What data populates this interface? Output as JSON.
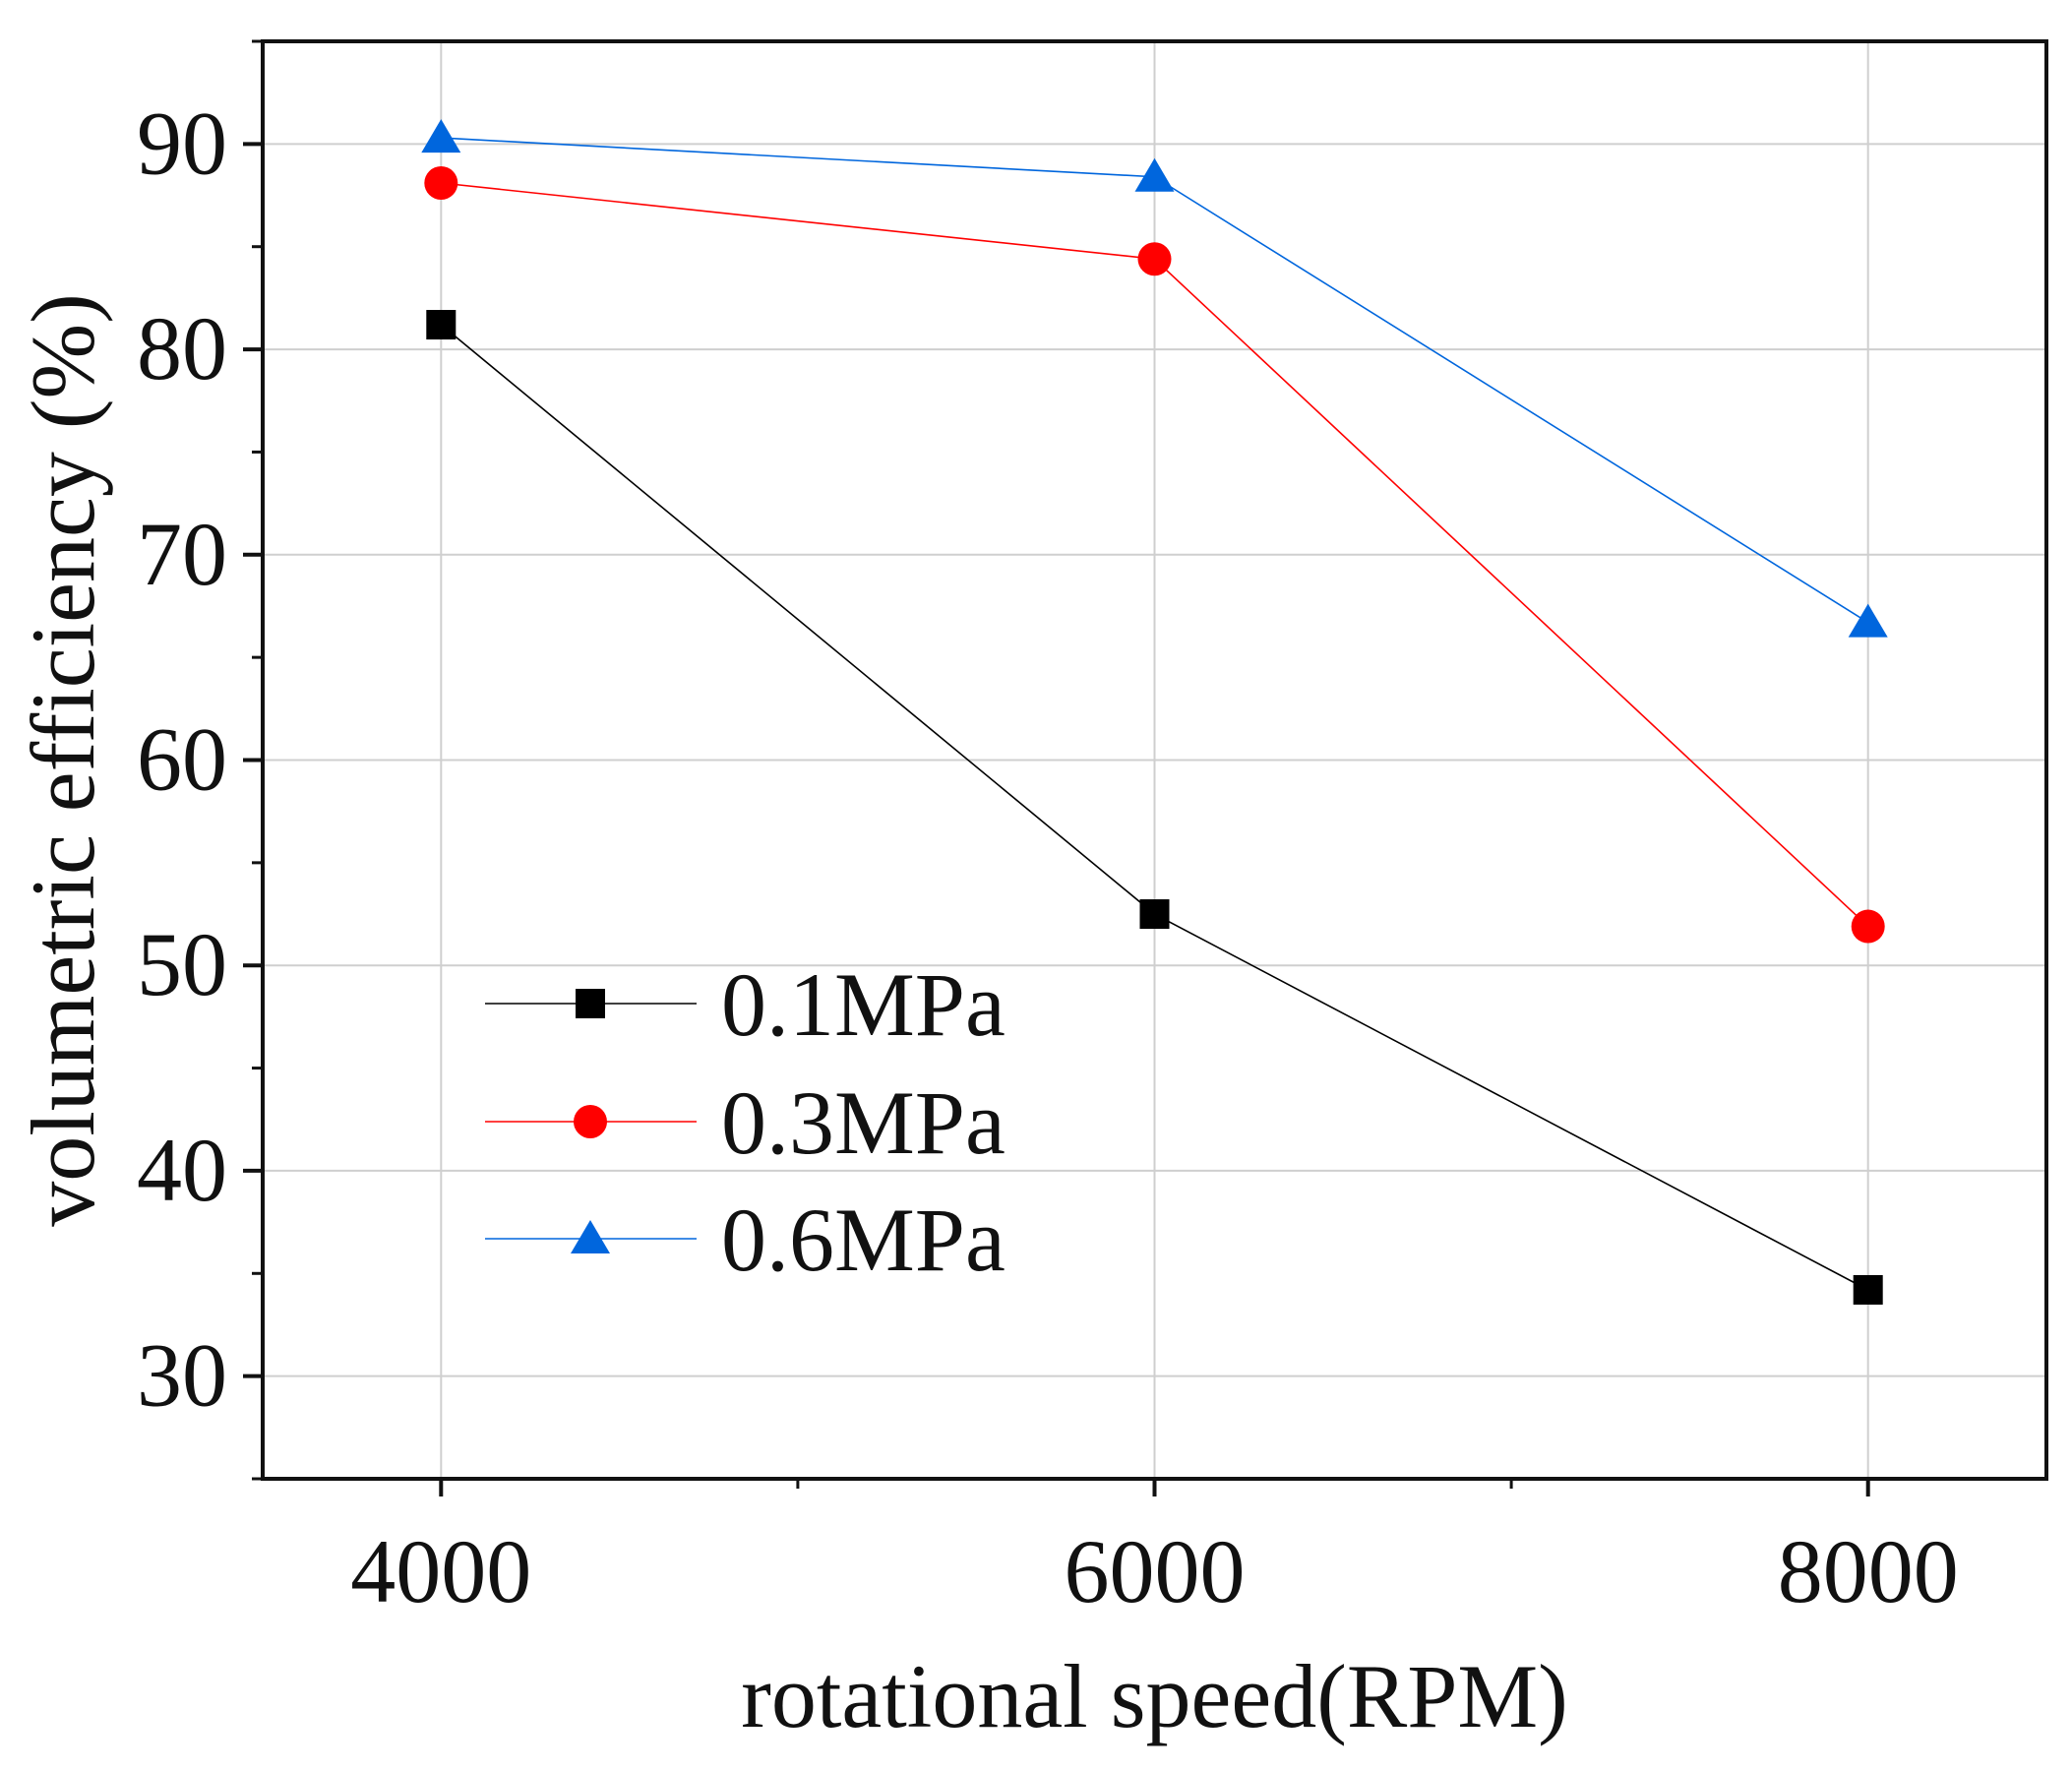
{
  "chart_data": {
    "type": "line",
    "title": "",
    "xlabel": "rotational speed(RPM)",
    "ylabel": "volumetric efficiency (%)",
    "x": [
      4000,
      6000,
      8000
    ],
    "xlim": [
      3500,
      8500
    ],
    "ylim": [
      25,
      95
    ],
    "xticks": [
      4000,
      6000,
      8000
    ],
    "yticks": [
      30,
      40,
      50,
      60,
      70,
      80,
      90
    ],
    "grid": true,
    "legend_position": "lower-left",
    "series": [
      {
        "name": "0.1MPa",
        "color": "#000000",
        "marker": "square",
        "values": [
          81.2,
          52.5,
          34.2
        ]
      },
      {
        "name": "0.3MPa",
        "color": "#ff0000",
        "marker": "circle",
        "values": [
          88.1,
          84.4,
          51.9
        ]
      },
      {
        "name": "0.6MPa",
        "color": "#0066dd",
        "marker": "triangle",
        "values": [
          90.3,
          88.4,
          66.7
        ]
      }
    ]
  }
}
